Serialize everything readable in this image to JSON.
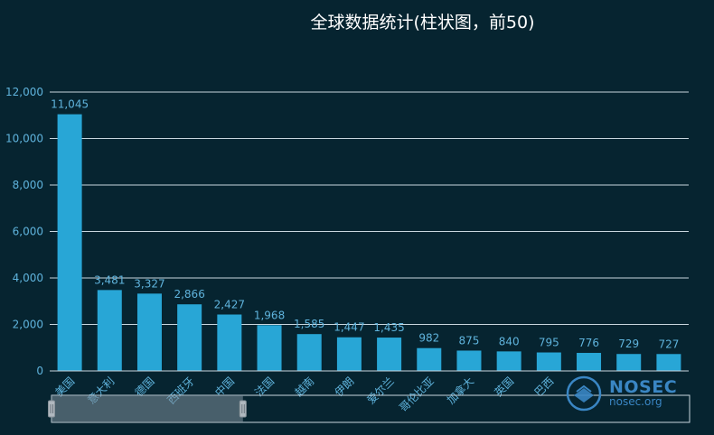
{
  "title": "全球数据统计(柱状图，前50)",
  "watermark": {
    "brand": "NOSEC",
    "domain": "nosec.org"
  },
  "colors": {
    "background": "#062430",
    "bar": "#28a6d6",
    "grid": "#c8d6de",
    "axis_text": "#5fb3dc",
    "label_text": "#5fb3dc",
    "slider_handle": "#b0b8bf"
  },
  "chart_data": {
    "type": "bar",
    "title": "全球数据统计(柱状图，前50)",
    "categories": [
      "美国",
      "意大利",
      "德国",
      "西班牙",
      "中国",
      "法国",
      "越南",
      "伊朗",
      "爱尔兰",
      "哥伦比亚",
      "加拿大",
      "英国",
      "巴西",
      "",
      "",
      ""
    ],
    "values": [
      11045,
      3481,
      3327,
      2866,
      2427,
      1968,
      1585,
      1447,
      1435,
      982,
      875,
      840,
      795,
      776,
      729,
      727
    ],
    "value_labels": [
      "11,045",
      "3,481",
      "3,327",
      "2,866",
      "2,427",
      "1,968",
      "1,585",
      "1,447",
      "1,435",
      "982",
      "875",
      "840",
      "795",
      "776",
      "729",
      "727"
    ],
    "yticks": [
      "0",
      "2,000",
      "4,000",
      "6,000",
      "8,000",
      "10,000",
      "12,000"
    ],
    "ylim": [
      0,
      12000
    ],
    "grid": true,
    "xlabel": "",
    "ylabel": "",
    "zoom_range": [
      0,
      0.3
    ]
  }
}
